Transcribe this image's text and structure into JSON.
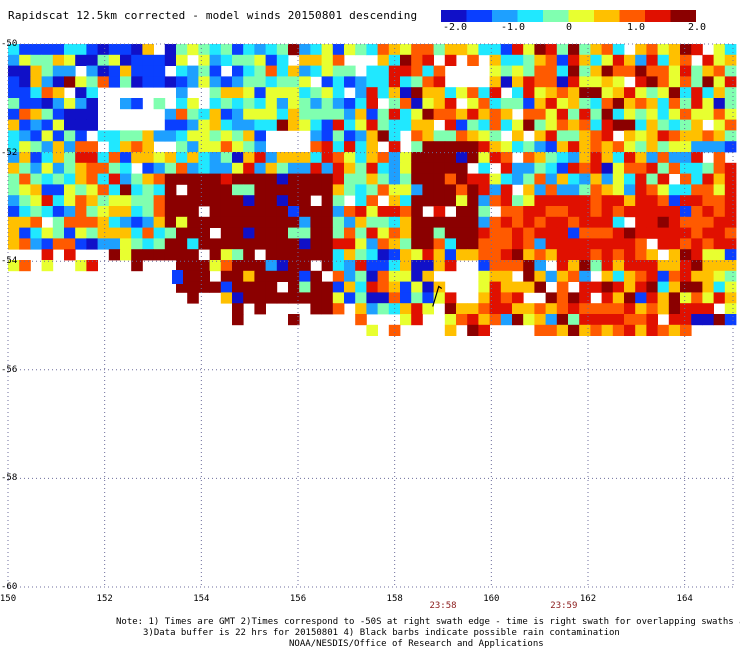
{
  "title": "Rapidscat 12.5km corrected - model winds 20150801 descending",
  "colorbar": {
    "colors": [
      "#1010c8",
      "#0a3fff",
      "#1ea0ff",
      "#20e8ff",
      "#80ffb0",
      "#e8ff30",
      "#ffc000",
      "#ff5a00",
      "#e01000",
      "#8b0000"
    ],
    "ticks": [
      "-2.0",
      "-1.0",
      "0",
      "1.0",
      "2.0"
    ],
    "min": -2.0,
    "max": 2.0
  },
  "axes": {
    "lat_labels": [
      "-50",
      "-52",
      "-54",
      "-56",
      "-58",
      "-60"
    ],
    "lon_labels": [
      "150",
      "152",
      "154",
      "156",
      "158",
      "160",
      "162",
      "164"
    ],
    "lon_min": 150,
    "lon_max": 165,
    "lat_min": -60,
    "lat_max": -50,
    "grid": "dotted"
  },
  "swath_times": [
    {
      "label": "23:58",
      "lon": 159.0
    },
    {
      "label": "23:59",
      "lon": 161.5
    }
  ],
  "notes": [
    "Note: 1) Times are GMT 2)Times correspond to -50S at right swath edge - time is right swath for overlapping swaths at -50S",
    "3)Data buffer is 22 hrs for 20150801 4) Black barbs indicate possible rain contamination",
    "NOAA/NESDIS/Office of Research and Applications"
  ],
  "rain_barbs": [
    {
      "lon": 158.85,
      "lat": -54.65
    }
  ]
}
